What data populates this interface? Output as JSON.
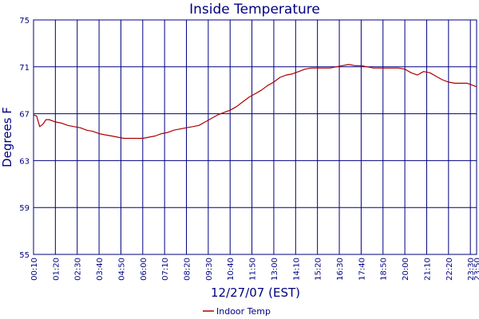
{
  "chart_data": {
    "type": "line",
    "title": "Inside Temperature",
    "xlabel": "12/27/07 (EST)",
    "ylabel": "Degrees F",
    "ylim": [
      55,
      75
    ],
    "yticks": [
      55,
      59,
      63,
      67,
      71,
      75
    ],
    "xlim_minutes": [
      10,
      1430
    ],
    "x_tick_labels": [
      "00:10",
      "01:20",
      "02:30",
      "03:40",
      "04:50",
      "06:00",
      "07:10",
      "08:20",
      "09:30",
      "10:40",
      "11:50",
      "13:00",
      "14:10",
      "15:20",
      "16:30",
      "17:40",
      "18:50",
      "20:00",
      "21:10",
      "22:20",
      "23:30",
      "23:50"
    ],
    "grid": true,
    "legend": "bottom-center",
    "colors": {
      "series": "#aa0000",
      "grid": "#000080",
      "text": "#000080",
      "background": "#ffffff"
    },
    "series": [
      {
        "name": "Indoor Temp",
        "x": [
          "00:10",
          "00:20",
          "00:30",
          "00:40",
          "00:50",
          "01:00",
          "01:20",
          "01:40",
          "02:00",
          "02:20",
          "02:40",
          "03:00",
          "03:20",
          "03:40",
          "04:00",
          "04:20",
          "04:40",
          "05:00",
          "05:20",
          "05:40",
          "06:00",
          "06:20",
          "06:40",
          "07:00",
          "07:20",
          "07:40",
          "08:00",
          "08:20",
          "08:40",
          "09:00",
          "09:20",
          "09:40",
          "10:00",
          "10:20",
          "10:40",
          "11:00",
          "11:20",
          "11:40",
          "12:00",
          "12:20",
          "12:40",
          "13:00",
          "13:20",
          "13:40",
          "14:00",
          "14:20",
          "14:40",
          "15:00",
          "15:20",
          "15:40",
          "16:00",
          "16:20",
          "16:40",
          "17:00",
          "17:20",
          "17:40",
          "18:00",
          "18:20",
          "18:40",
          "19:00",
          "19:20",
          "19:40",
          "20:00",
          "20:20",
          "20:40",
          "21:00",
          "21:20",
          "21:40",
          "22:00",
          "22:20",
          "22:40",
          "23:00",
          "23:20",
          "23:40",
          "23:50"
        ],
        "values": [
          66.9,
          66.8,
          65.9,
          66.1,
          66.5,
          66.5,
          66.3,
          66.2,
          66.0,
          65.9,
          65.8,
          65.6,
          65.5,
          65.3,
          65.2,
          65.1,
          65.0,
          64.9,
          64.9,
          64.9,
          64.9,
          65.0,
          65.1,
          65.3,
          65.4,
          65.6,
          65.7,
          65.8,
          65.9,
          66.0,
          66.3,
          66.6,
          66.9,
          67.1,
          67.3,
          67.6,
          68.0,
          68.4,
          68.7,
          69.0,
          69.4,
          69.7,
          70.1,
          70.3,
          70.4,
          70.6,
          70.8,
          70.9,
          70.9,
          70.9,
          70.9,
          71.0,
          71.1,
          71.2,
          71.1,
          71.1,
          71.0,
          70.9,
          70.9,
          70.9,
          70.9,
          70.9,
          70.8,
          70.5,
          70.3,
          70.6,
          70.5,
          70.2,
          69.9,
          69.7,
          69.6,
          69.6,
          69.6,
          69.4,
          69.3
        ]
      }
    ]
  }
}
